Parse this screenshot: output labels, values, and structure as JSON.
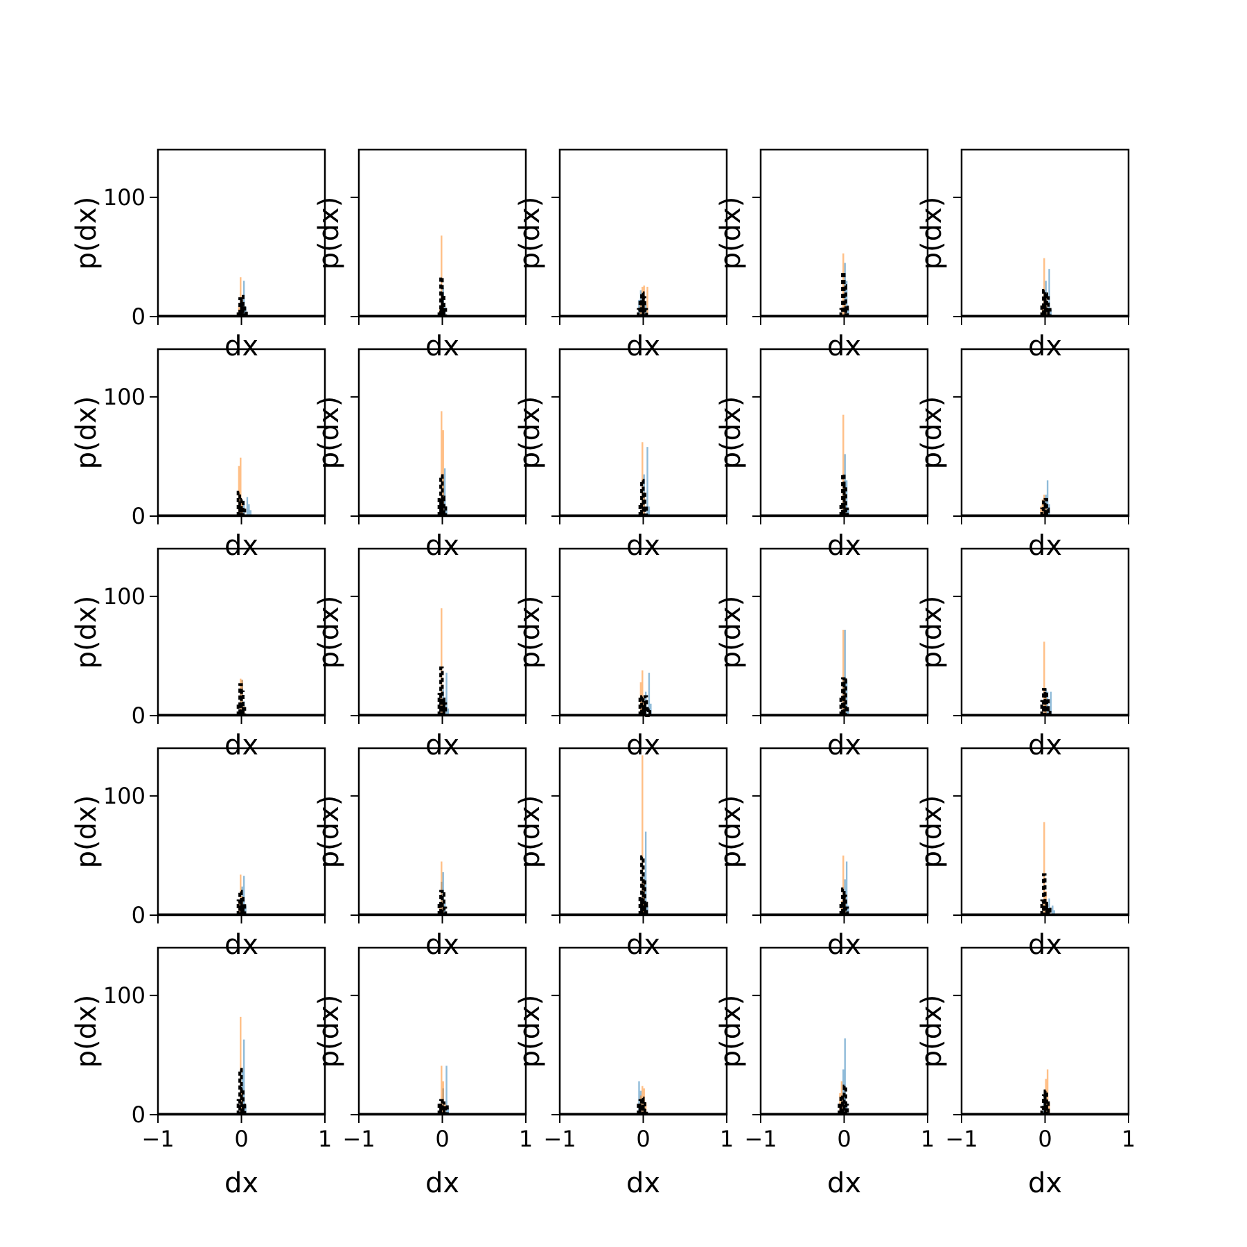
{
  "figure": {
    "rows": 5,
    "cols": 5
  },
  "colors": {
    "blue": "#1f77b4",
    "orange": "#ff7f0e",
    "black": "#000000"
  },
  "chart_data": {
    "type": "histogram-grid",
    "xlabel": "dx",
    "ylabel": "p(dx)",
    "xlim": [
      -1,
      1
    ],
    "ylim": [
      0,
      140
    ],
    "x_ticks": [
      "−1",
      "0",
      "1"
    ],
    "y_ticks": [
      "0",
      "100"
    ],
    "bin_width": 0.02,
    "histogram_style": {
      "blue_opacity": 0.5,
      "orange_opacity": 0.5,
      "black_line": "dashed"
    },
    "panels": [
      {
        "row": 0,
        "col": 0,
        "blue": [
          [
            0.01,
            12
          ],
          [
            0.03,
            30
          ],
          [
            0.05,
            8
          ]
        ],
        "orange": [
          [
            -0.03,
            8
          ],
          [
            -0.01,
            33
          ],
          [
            0.01,
            14
          ]
        ],
        "black": [
          [
            -0.03,
            4
          ],
          [
            -0.01,
            15
          ],
          [
            0.01,
            17
          ],
          [
            0.03,
            9
          ],
          [
            0.05,
            3
          ]
        ]
      },
      {
        "row": 0,
        "col": 1,
        "blue": [
          [
            -0.01,
            14
          ],
          [
            0.01,
            24
          ],
          [
            0.03,
            8
          ]
        ],
        "orange": [
          [
            -0.03,
            6
          ],
          [
            -0.01,
            68
          ],
          [
            0.01,
            10
          ]
        ],
        "black": [
          [
            -0.03,
            5
          ],
          [
            -0.01,
            33
          ],
          [
            0.01,
            18
          ],
          [
            0.03,
            6
          ]
        ]
      },
      {
        "row": 0,
        "col": 2,
        "blue": [
          [
            -0.05,
            14
          ],
          [
            -0.03,
            22
          ],
          [
            0.01,
            18
          ],
          [
            0.03,
            10
          ]
        ],
        "orange": [
          [
            -0.03,
            10
          ],
          [
            -0.01,
            25
          ],
          [
            0.01,
            26
          ],
          [
            0.05,
            25
          ]
        ],
        "black": [
          [
            -0.05,
            6
          ],
          [
            -0.03,
            14
          ],
          [
            -0.01,
            20
          ],
          [
            0.01,
            16
          ],
          [
            0.03,
            6
          ]
        ]
      },
      {
        "row": 0,
        "col": 3,
        "blue": [
          [
            0.01,
            45
          ],
          [
            0.03,
            30
          ],
          [
            0.05,
            6
          ]
        ],
        "orange": [
          [
            -0.01,
            53
          ],
          [
            0.01,
            12
          ]
        ],
        "black": [
          [
            -0.03,
            6
          ],
          [
            -0.01,
            37
          ],
          [
            0.01,
            26
          ],
          [
            0.03,
            8
          ]
        ]
      },
      {
        "row": 0,
        "col": 4,
        "blue": [
          [
            0.01,
            30
          ],
          [
            0.05,
            40
          ],
          [
            0.07,
            6
          ]
        ],
        "orange": [
          [
            -0.03,
            10
          ],
          [
            -0.01,
            49
          ],
          [
            0.01,
            18
          ]
        ],
        "black": [
          [
            -0.03,
            10
          ],
          [
            -0.01,
            22
          ],
          [
            0.01,
            19
          ],
          [
            0.03,
            16
          ],
          [
            0.05,
            6
          ]
        ]
      },
      {
        "row": 1,
        "col": 0,
        "blue": [
          [
            0.03,
            13
          ],
          [
            0.07,
            16
          ],
          [
            0.09,
            10
          ],
          [
            0.11,
            5
          ]
        ],
        "orange": [
          [
            -0.03,
            42
          ],
          [
            -0.01,
            49
          ],
          [
            0.01,
            12
          ]
        ],
        "black": [
          [
            -0.03,
            20
          ],
          [
            -0.01,
            8
          ],
          [
            0.01,
            14
          ],
          [
            0.03,
            5
          ]
        ]
      },
      {
        "row": 1,
        "col": 1,
        "blue": [
          [
            0.01,
            33
          ],
          [
            0.03,
            40
          ],
          [
            0.05,
            8
          ]
        ],
        "orange": [
          [
            -0.01,
            88
          ],
          [
            0.01,
            72
          ]
        ],
        "black": [
          [
            -0.03,
            14
          ],
          [
            -0.01,
            34
          ],
          [
            0.01,
            16
          ],
          [
            0.03,
            7
          ]
        ]
      },
      {
        "row": 1,
        "col": 2,
        "blue": [
          [
            0.01,
            35
          ],
          [
            0.05,
            58
          ],
          [
            0.07,
            8
          ]
        ],
        "orange": [
          [
            -0.01,
            62
          ],
          [
            0.01,
            20
          ]
        ],
        "black": [
          [
            -0.03,
            10
          ],
          [
            -0.01,
            30
          ],
          [
            0.01,
            20
          ],
          [
            0.03,
            8
          ]
        ]
      },
      {
        "row": 1,
        "col": 3,
        "blue": [
          [
            0.01,
            52
          ],
          [
            0.03,
            30
          ],
          [
            0.05,
            6
          ]
        ],
        "orange": [
          [
            -0.01,
            85
          ],
          [
            0.01,
            20
          ]
        ],
        "black": [
          [
            -0.03,
            10
          ],
          [
            -0.01,
            35
          ],
          [
            0.01,
            26
          ],
          [
            0.03,
            6
          ]
        ]
      },
      {
        "row": 1,
        "col": 4,
        "blue": [
          [
            0.01,
            18
          ],
          [
            0.03,
            30
          ],
          [
            0.05,
            10
          ]
        ],
        "orange": [
          [
            -0.05,
            8
          ],
          [
            -0.03,
            14
          ],
          [
            -0.01,
            18
          ],
          [
            0.01,
            8
          ]
        ],
        "black": [
          [
            -0.03,
            6
          ],
          [
            -0.01,
            12
          ],
          [
            0.01,
            14
          ],
          [
            0.03,
            6
          ]
        ]
      },
      {
        "row": 2,
        "col": 0,
        "blue": [
          [
            -0.01,
            18
          ],
          [
            0.01,
            30
          ],
          [
            0.03,
            12
          ]
        ],
        "orange": [
          [
            -0.01,
            31
          ],
          [
            0.01,
            30
          ],
          [
            0.03,
            8
          ]
        ],
        "black": [
          [
            -0.03,
            10
          ],
          [
            -0.01,
            26
          ],
          [
            0.01,
            20
          ],
          [
            0.03,
            6
          ]
        ]
      },
      {
        "row": 2,
        "col": 1,
        "blue": [
          [
            0.01,
            22
          ],
          [
            0.05,
            36
          ],
          [
            0.07,
            6
          ]
        ],
        "orange": [
          [
            -0.01,
            90
          ],
          [
            0.01,
            14
          ]
        ],
        "black": [
          [
            -0.03,
            18
          ],
          [
            -0.01,
            40
          ],
          [
            0.01,
            14
          ],
          [
            0.03,
            10
          ]
        ]
      },
      {
        "row": 2,
        "col": 2,
        "blue": [
          [
            0.03,
            20
          ],
          [
            0.07,
            36
          ],
          [
            0.09,
            10
          ]
        ],
        "orange": [
          [
            -0.03,
            28
          ],
          [
            -0.01,
            38
          ],
          [
            0.01,
            12
          ]
        ],
        "black": [
          [
            -0.03,
            16
          ],
          [
            -0.01,
            16
          ],
          [
            0.01,
            8
          ],
          [
            0.03,
            16
          ],
          [
            0.07,
            6
          ]
        ]
      },
      {
        "row": 2,
        "col": 3,
        "blue": [
          [
            0.01,
            72
          ],
          [
            0.03,
            30
          ],
          [
            0.05,
            6
          ]
        ],
        "orange": [
          [
            -0.01,
            72
          ],
          [
            0.01,
            20
          ]
        ],
        "black": [
          [
            -0.03,
            16
          ],
          [
            -0.01,
            31
          ],
          [
            0.01,
            30
          ],
          [
            0.03,
            8
          ]
        ]
      },
      {
        "row": 2,
        "col": 4,
        "blue": [
          [
            0.01,
            22
          ],
          [
            0.03,
            20
          ],
          [
            0.07,
            20
          ]
        ],
        "orange": [
          [
            -0.01,
            62
          ],
          [
            0.01,
            18
          ]
        ],
        "black": [
          [
            -0.03,
            12
          ],
          [
            -0.01,
            22
          ],
          [
            0.01,
            20
          ],
          [
            0.03,
            14
          ],
          [
            0.05,
            6
          ]
        ]
      },
      {
        "row": 3,
        "col": 0,
        "blue": [
          [
            0.01,
            24
          ],
          [
            0.03,
            33
          ],
          [
            0.05,
            8
          ]
        ],
        "orange": [
          [
            -0.03,
            12
          ],
          [
            -0.01,
            34
          ],
          [
            0.01,
            16
          ]
        ],
        "black": [
          [
            -0.03,
            12
          ],
          [
            -0.01,
            20
          ],
          [
            0.01,
            14
          ],
          [
            0.03,
            8
          ]
        ]
      },
      {
        "row": 3,
        "col": 1,
        "blue": [
          [
            -0.01,
            28
          ],
          [
            0.01,
            36
          ],
          [
            0.03,
            10
          ]
        ],
        "orange": [
          [
            -0.03,
            8
          ],
          [
            -0.01,
            45
          ],
          [
            0.01,
            12
          ]
        ],
        "black": [
          [
            -0.03,
            10
          ],
          [
            -0.01,
            20
          ],
          [
            0.01,
            18
          ],
          [
            0.03,
            6
          ]
        ]
      },
      {
        "row": 3,
        "col": 2,
        "blue": [
          [
            0.01,
            36
          ],
          [
            0.03,
            70
          ],
          [
            0.05,
            8
          ]
        ],
        "orange": [
          [
            -0.01,
            134
          ],
          [
            0.01,
            30
          ]
        ],
        "black": [
          [
            -0.03,
            14
          ],
          [
            -0.01,
            49
          ],
          [
            0.01,
            28
          ],
          [
            0.03,
            10
          ]
        ]
      },
      {
        "row": 3,
        "col": 3,
        "blue": [
          [
            0.01,
            30
          ],
          [
            0.03,
            45
          ],
          [
            0.05,
            8
          ]
        ],
        "orange": [
          [
            -0.03,
            12
          ],
          [
            -0.01,
            50
          ],
          [
            0.01,
            18
          ]
        ],
        "black": [
          [
            -0.03,
            10
          ],
          [
            -0.01,
            22
          ],
          [
            0.01,
            16
          ],
          [
            0.03,
            6
          ]
        ]
      },
      {
        "row": 3,
        "col": 4,
        "blue": [
          [
            0.01,
            10
          ],
          [
            0.05,
            14
          ],
          [
            0.09,
            8
          ],
          [
            0.11,
            4
          ]
        ],
        "orange": [
          [
            -0.01,
            78
          ],
          [
            0.01,
            20
          ]
        ],
        "black": [
          [
            -0.03,
            12
          ],
          [
            -0.01,
            34
          ],
          [
            0.01,
            10
          ],
          [
            0.03,
            8
          ],
          [
            0.05,
            5
          ]
        ]
      },
      {
        "row": 4,
        "col": 0,
        "blue": [
          [
            0.01,
            36
          ],
          [
            0.03,
            63
          ],
          [
            0.05,
            8
          ]
        ],
        "orange": [
          [
            -0.01,
            82
          ],
          [
            0.01,
            20
          ]
        ],
        "black": [
          [
            -0.03,
            12
          ],
          [
            -0.01,
            38
          ],
          [
            0.01,
            22
          ],
          [
            0.03,
            8
          ]
        ]
      },
      {
        "row": 4,
        "col": 1,
        "blue": [
          [
            0.01,
            22
          ],
          [
            0.05,
            41
          ],
          [
            0.07,
            6
          ]
        ],
        "orange": [
          [
            -0.01,
            41
          ],
          [
            0.01,
            28
          ],
          [
            0.03,
            10
          ]
        ],
        "black": [
          [
            -0.03,
            8
          ],
          [
            -0.01,
            12
          ],
          [
            0.01,
            10
          ],
          [
            0.03,
            6
          ],
          [
            0.05,
            8
          ]
        ]
      },
      {
        "row": 4,
        "col": 2,
        "blue": [
          [
            -0.05,
            28
          ],
          [
            -0.03,
            20
          ],
          [
            -0.01,
            10
          ],
          [
            0.01,
            8
          ]
        ],
        "orange": [
          [
            -0.03,
            16
          ],
          [
            -0.01,
            24
          ],
          [
            0.01,
            22
          ],
          [
            0.03,
            10
          ]
        ],
        "black": [
          [
            -0.05,
            8
          ],
          [
            -0.03,
            12
          ],
          [
            -0.01,
            14
          ],
          [
            0.01,
            12
          ],
          [
            0.03,
            4
          ]
        ]
      },
      {
        "row": 4,
        "col": 3,
        "blue": [
          [
            -0.01,
            38
          ],
          [
            0.01,
            64
          ],
          [
            0.03,
            10
          ]
        ],
        "orange": [
          [
            -0.05,
            18
          ],
          [
            -0.03,
            28
          ],
          [
            -0.01,
            12
          ]
        ],
        "black": [
          [
            -0.05,
            8
          ],
          [
            -0.03,
            16
          ],
          [
            -0.01,
            10
          ],
          [
            0.01,
            24
          ],
          [
            0.03,
            8
          ]
        ]
      },
      {
        "row": 4,
        "col": 4,
        "blue": [
          [
            -0.01,
            10
          ],
          [
            0.01,
            16
          ],
          [
            0.03,
            8
          ]
        ],
        "orange": [
          [
            0.01,
            30
          ],
          [
            0.03,
            38
          ],
          [
            0.05,
            10
          ]
        ],
        "black": [
          [
            -0.03,
            6
          ],
          [
            -0.01,
            16
          ],
          [
            0.01,
            20
          ],
          [
            0.03,
            10
          ]
        ]
      }
    ]
  }
}
